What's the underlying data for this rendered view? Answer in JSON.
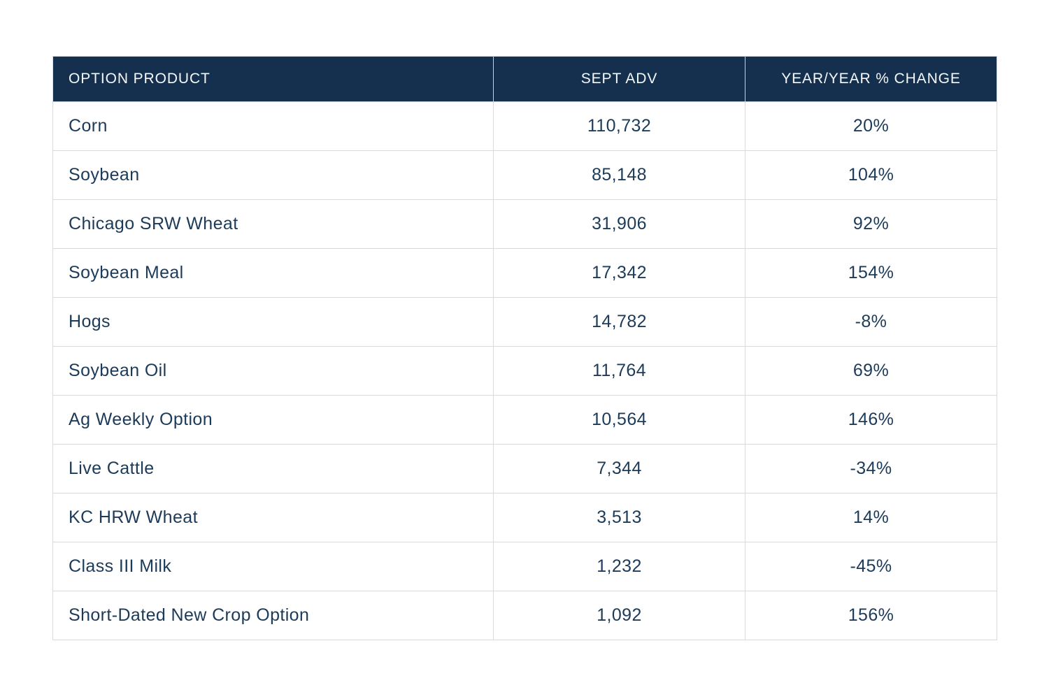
{
  "colors": {
    "header_bg": "#14304e",
    "header_text": "#f5f7f9",
    "body_text": "#1c3b5a",
    "grid_line": "#d8dbdd"
  },
  "table": {
    "columns": {
      "product": "OPTION PRODUCT",
      "sept_adv": "SEPT ADV",
      "yoy_change": "YEAR/YEAR % CHANGE"
    },
    "rows": [
      {
        "product": "Corn",
        "sept_adv": "110,732",
        "yoy_change": "20%"
      },
      {
        "product": "Soybean",
        "sept_adv": "85,148",
        "yoy_change": "104%"
      },
      {
        "product": "Chicago SRW Wheat",
        "sept_adv": "31,906",
        "yoy_change": "92%"
      },
      {
        "product": "Soybean Meal",
        "sept_adv": "17,342",
        "yoy_change": "154%"
      },
      {
        "product": "Hogs",
        "sept_adv": "14,782",
        "yoy_change": "-8%"
      },
      {
        "product": "Soybean Oil",
        "sept_adv": "11,764",
        "yoy_change": "69%"
      },
      {
        "product": "Ag Weekly Option",
        "sept_adv": "10,564",
        "yoy_change": "146%"
      },
      {
        "product": "Live Cattle",
        "sept_adv": "7,344",
        "yoy_change": "-34%"
      },
      {
        "product": "KC HRW Wheat",
        "sept_adv": "3,513",
        "yoy_change": "14%"
      },
      {
        "product": "Class III Milk",
        "sept_adv": "1,232",
        "yoy_change": "-45%"
      },
      {
        "product": "Short-Dated New Crop Option",
        "sept_adv": "1,092",
        "yoy_change": "156%"
      }
    ]
  }
}
